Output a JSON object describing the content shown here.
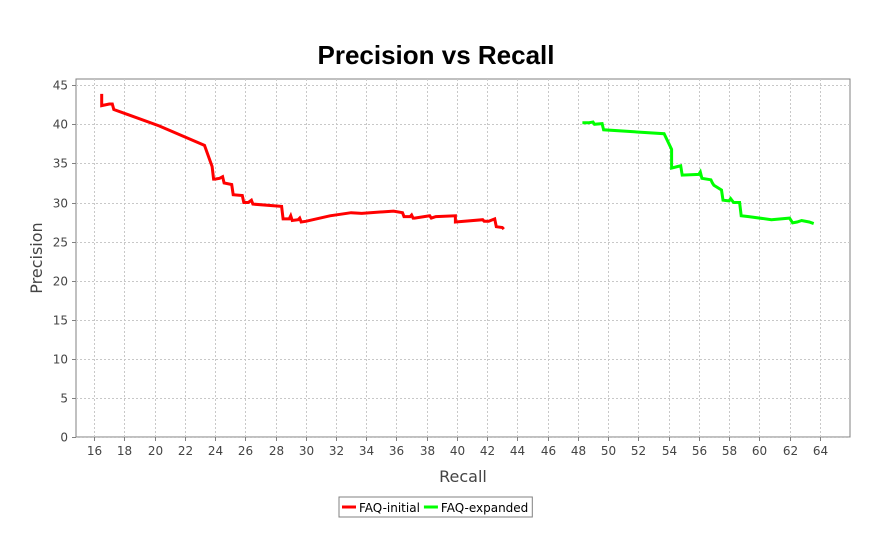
{
  "chart_data": {
    "type": "line",
    "title": "Precision vs Recall",
    "xlabel": "Recall",
    "ylabel": "Precision",
    "xlim": [
      14.8,
      66
    ],
    "ylim": [
      0,
      45.8
    ],
    "xticks": [
      16,
      18,
      20,
      22,
      24,
      26,
      28,
      30,
      32,
      34,
      36,
      38,
      40,
      42,
      44,
      46,
      48,
      50,
      52,
      54,
      56,
      58,
      60,
      62,
      64
    ],
    "yticks": [
      0,
      5,
      10,
      15,
      20,
      25,
      30,
      35,
      40,
      45
    ],
    "grid": true,
    "legend_position": "bottom",
    "series": [
      {
        "name": "FAQ-initial",
        "color": "#ff0000",
        "points": [
          [
            16.5,
            43.9
          ],
          [
            16.5,
            42.4
          ],
          [
            17.0,
            42.6
          ],
          [
            17.2,
            42.6
          ],
          [
            17.3,
            41.9
          ],
          [
            20.3,
            39.8
          ],
          [
            23.3,
            37.3
          ],
          [
            23.8,
            34.6
          ],
          [
            23.9,
            33.0
          ],
          [
            24.0,
            33.0
          ],
          [
            24.3,
            33.1
          ],
          [
            24.5,
            33.3
          ],
          [
            24.6,
            32.5
          ],
          [
            25.1,
            32.3
          ],
          [
            25.2,
            31.0
          ],
          [
            25.8,
            30.9
          ],
          [
            25.9,
            30.0
          ],
          [
            26.2,
            30.0
          ],
          [
            26.4,
            30.3
          ],
          [
            26.5,
            29.8
          ],
          [
            28.4,
            29.5
          ],
          [
            28.5,
            27.9
          ],
          [
            28.9,
            27.9
          ],
          [
            29.0,
            28.3
          ],
          [
            29.1,
            27.7
          ],
          [
            29.5,
            27.8
          ],
          [
            29.6,
            28.0
          ],
          [
            29.7,
            27.5
          ],
          [
            30.0,
            27.6
          ],
          [
            31.6,
            28.3
          ],
          [
            33.0,
            28.7
          ],
          [
            33.7,
            28.6
          ],
          [
            35.8,
            28.9
          ],
          [
            36.4,
            28.7
          ],
          [
            36.5,
            28.2
          ],
          [
            36.9,
            28.2
          ],
          [
            37.0,
            28.4
          ],
          [
            37.1,
            28.0
          ],
          [
            37.2,
            28.0
          ],
          [
            38.2,
            28.3
          ],
          [
            38.3,
            28.0
          ],
          [
            38.6,
            28.2
          ],
          [
            39.9,
            28.3
          ],
          [
            39.9,
            27.5
          ],
          [
            41.7,
            27.8
          ],
          [
            41.8,
            27.6
          ],
          [
            42.1,
            27.6
          ],
          [
            42.5,
            27.9
          ],
          [
            42.6,
            26.9
          ],
          [
            43.0,
            26.8
          ],
          [
            43.1,
            26.6
          ]
        ]
      },
      {
        "name": "FAQ-expanded",
        "color": "#00ff00",
        "points": [
          [
            48.3,
            40.2
          ],
          [
            48.7,
            40.2
          ],
          [
            49.0,
            40.3
          ],
          [
            49.1,
            40.0
          ],
          [
            49.6,
            40.1
          ],
          [
            49.7,
            39.3
          ],
          [
            53.7,
            38.8
          ],
          [
            54.2,
            36.8
          ],
          [
            54.2,
            34.4
          ],
          [
            54.6,
            34.6
          ],
          [
            54.8,
            34.7
          ],
          [
            54.9,
            33.5
          ],
          [
            56.0,
            33.6
          ],
          [
            56.1,
            33.9
          ],
          [
            56.2,
            33.1
          ],
          [
            56.8,
            32.9
          ],
          [
            56.9,
            32.5
          ],
          [
            57.0,
            32.2
          ],
          [
            57.5,
            31.6
          ],
          [
            57.6,
            30.3
          ],
          [
            58.0,
            30.2
          ],
          [
            58.1,
            30.5
          ],
          [
            58.3,
            30.0
          ],
          [
            58.7,
            30.0
          ],
          [
            58.8,
            28.3
          ],
          [
            59.3,
            28.2
          ],
          [
            60.8,
            27.8
          ],
          [
            62.0,
            28.0
          ],
          [
            62.2,
            27.4
          ],
          [
            62.5,
            27.5
          ],
          [
            62.8,
            27.7
          ],
          [
            63.3,
            27.5
          ],
          [
            63.6,
            27.3
          ]
        ]
      }
    ]
  }
}
